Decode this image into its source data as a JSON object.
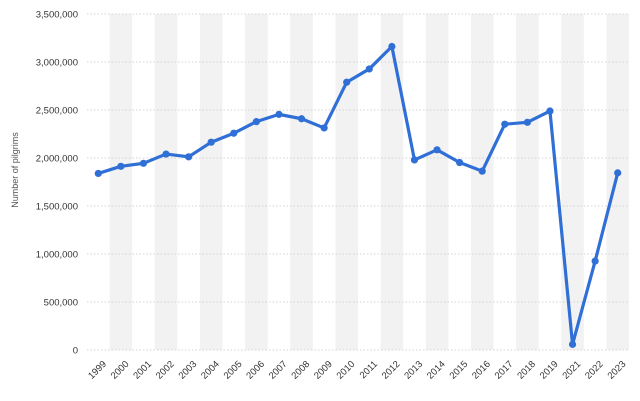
{
  "chart_data": {
    "type": "line",
    "title": "",
    "xlabel": "",
    "ylabel": "Number of pilgrims",
    "ylim": [
      0,
      3500000
    ],
    "y_ticks": [
      0,
      500000,
      1000000,
      1500000,
      2000000,
      2500000,
      3000000,
      3500000
    ],
    "y_tick_labels": [
      "0",
      "500,000",
      "1,000,000",
      "1,500,000",
      "2,000,000",
      "2,500,000",
      "3,000,000",
      "3,500,000"
    ],
    "grid": true,
    "alternating_column_bands": true,
    "legend": "none",
    "categories": [
      "1999",
      "2000",
      "2001",
      "2002",
      "2003",
      "2004",
      "2005",
      "2006",
      "2007",
      "2008",
      "2009",
      "2010",
      "2011",
      "2012",
      "2013",
      "2014",
      "2015",
      "2016",
      "2017",
      "2018",
      "2019",
      "2021",
      "2022",
      "2023"
    ],
    "series": [
      {
        "values": [
          1839154,
          1913263,
          1944760,
          2041129,
          2012074,
          2164479,
          2258050,
          2378636,
          2454325,
          2408849,
          2313278,
          2789399,
          2927717,
          3161573,
          1980249,
          2085238,
          1952817,
          1862909,
          2352122,
          2371675,
          2489406,
          58745,
          926062,
          1845045
        ],
        "color": "#2f6fd6"
      }
    ]
  }
}
